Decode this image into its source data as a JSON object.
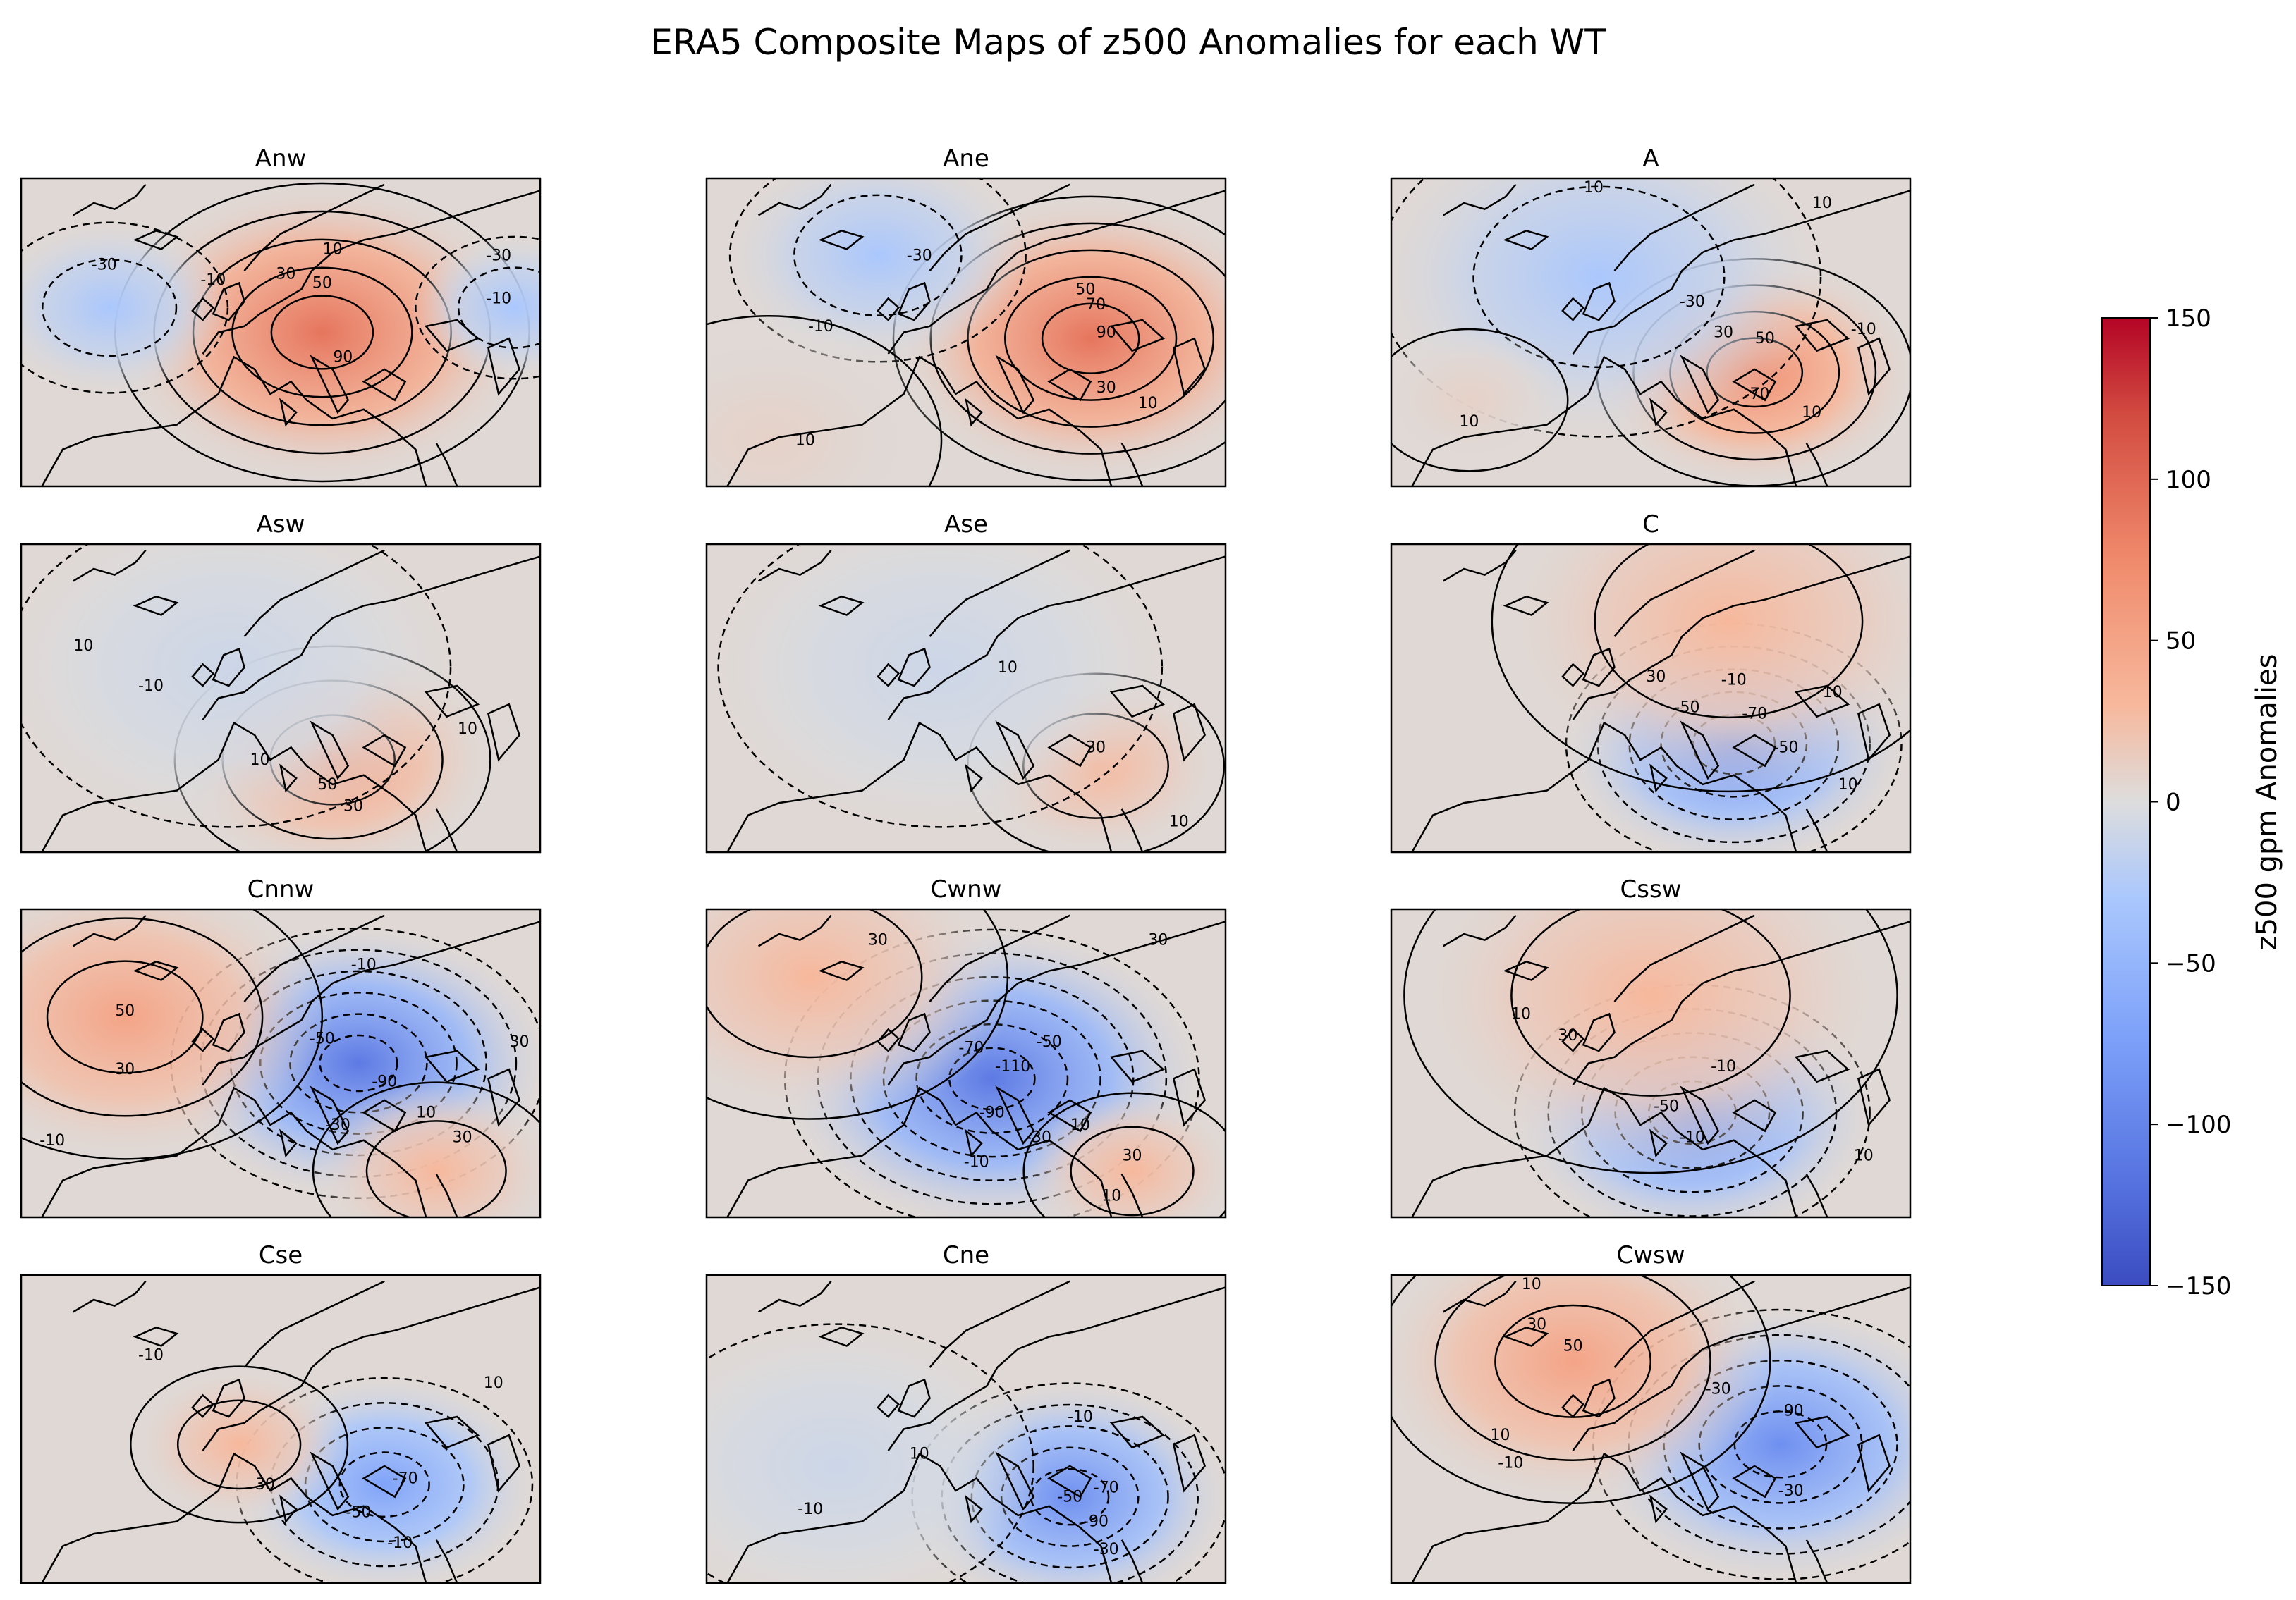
{
  "title": "ERA5 Composite Maps of z500 Anomalies for each WT",
  "colorbar": {
    "label": "z500 gpm Anomalies",
    "min": -150,
    "max": 150,
    "ticks": [
      150,
      100,
      50,
      0,
      -50,
      -100,
      -150
    ],
    "tick_labels": [
      "150",
      "100",
      "50",
      "0",
      "−50",
      "−100",
      "−150"
    ],
    "colormap": "coolwarm",
    "colors": {
      "low": "#3b4cc0",
      "mid": "#dddddd",
      "high": "#b40426"
    }
  },
  "chart_data": {
    "type": "heatmap",
    "title": "ERA5 Composite Maps of z500 Anomalies for each WT",
    "variable": "z500 gpm Anomalies",
    "colorbar_range": [
      -150,
      150
    ],
    "contour_style": "solid for positive, dashed for negative",
    "panels": [
      {
        "name": "Anw",
        "anomaly_centers": [
          {
            "sign": "high",
            "peak": 90
          },
          {
            "sign": "low",
            "peak": -30
          },
          {
            "sign": "low",
            "peak": -30
          }
        ],
        "contour_labels": [
          "-30",
          "-10",
          "10",
          "30",
          "50",
          "90",
          "-10",
          "-30"
        ]
      },
      {
        "name": "Ane",
        "anomaly_centers": [
          {
            "sign": "high",
            "peak": 90
          },
          {
            "sign": "low",
            "peak": -30
          },
          {
            "sign": "high",
            "peak": 10
          }
        ],
        "contour_labels": [
          "-30",
          "-10",
          "50",
          "70",
          "90",
          "30",
          "10",
          "10"
        ]
      },
      {
        "name": "A",
        "anomaly_centers": [
          {
            "sign": "high",
            "peak": 70
          },
          {
            "sign": "low",
            "peak": -30
          },
          {
            "sign": "high",
            "peak": 10
          }
        ],
        "contour_labels": [
          "10",
          "10",
          "-30",
          "30",
          "50",
          "70",
          "-10",
          "10",
          "10"
        ]
      },
      {
        "name": "Asw",
        "anomaly_centers": [
          {
            "sign": "high",
            "peak": 50
          },
          {
            "sign": "low",
            "peak": -10
          }
        ],
        "contour_labels": [
          "10",
          "-10",
          "10",
          "50",
          "30",
          "10"
        ]
      },
      {
        "name": "Ase",
        "anomaly_centers": [
          {
            "sign": "high",
            "peak": 30
          },
          {
            "sign": "low",
            "peak": -10
          }
        ],
        "contour_labels": [
          "10",
          "30",
          "10"
        ]
      },
      {
        "name": "C",
        "anomaly_centers": [
          {
            "sign": "low",
            "peak": -90
          },
          {
            "sign": "high",
            "peak": 30
          }
        ],
        "contour_labels": [
          "30",
          "-10",
          "10",
          "-50",
          "-70",
          "-50",
          "10"
        ]
      },
      {
        "name": "Cnnw",
        "anomaly_centers": [
          {
            "sign": "low",
            "peak": -110
          },
          {
            "sign": "high",
            "peak": 50
          },
          {
            "sign": "high",
            "peak": 30
          }
        ],
        "contour_labels": [
          "50",
          "30",
          "-10",
          "-50",
          "-90",
          "-30",
          "10",
          "30",
          "30",
          "-10"
        ]
      },
      {
        "name": "Cwnw",
        "anomaly_centers": [
          {
            "sign": "low",
            "peak": -110
          },
          {
            "sign": "high",
            "peak": 30
          },
          {
            "sign": "high",
            "peak": 30
          }
        ],
        "contour_labels": [
          "30",
          "30",
          "-70",
          "-110",
          "-50",
          "-90",
          "-30",
          "-10",
          "30",
          "10",
          "10"
        ]
      },
      {
        "name": "Cssw",
        "anomaly_centers": [
          {
            "sign": "low",
            "peak": -90
          },
          {
            "sign": "high",
            "peak": 30
          }
        ],
        "contour_labels": [
          "10",
          "30",
          "-10",
          "-50",
          "-10",
          "10"
        ]
      },
      {
        "name": "Cse",
        "anomaly_centers": [
          {
            "sign": "low",
            "peak": -70
          },
          {
            "sign": "high",
            "peak": 30
          }
        ],
        "contour_labels": [
          "-10",
          "10",
          "30",
          "-70",
          "-50",
          "-10"
        ]
      },
      {
        "name": "Cne",
        "anomaly_centers": [
          {
            "sign": "low",
            "peak": -90
          },
          {
            "sign": "low",
            "peak": -10
          }
        ],
        "contour_labels": [
          "-10",
          "-10",
          "10",
          "-70",
          "-50",
          "-90",
          "-30"
        ]
      },
      {
        "name": "Cwsw",
        "anomaly_centers": [
          {
            "sign": "low",
            "peak": -90
          },
          {
            "sign": "high",
            "peak": 50
          }
        ],
        "contour_labels": [
          "10",
          "30",
          "50",
          "10",
          "-10",
          "-30",
          "-90",
          "-30"
        ]
      }
    ]
  }
}
